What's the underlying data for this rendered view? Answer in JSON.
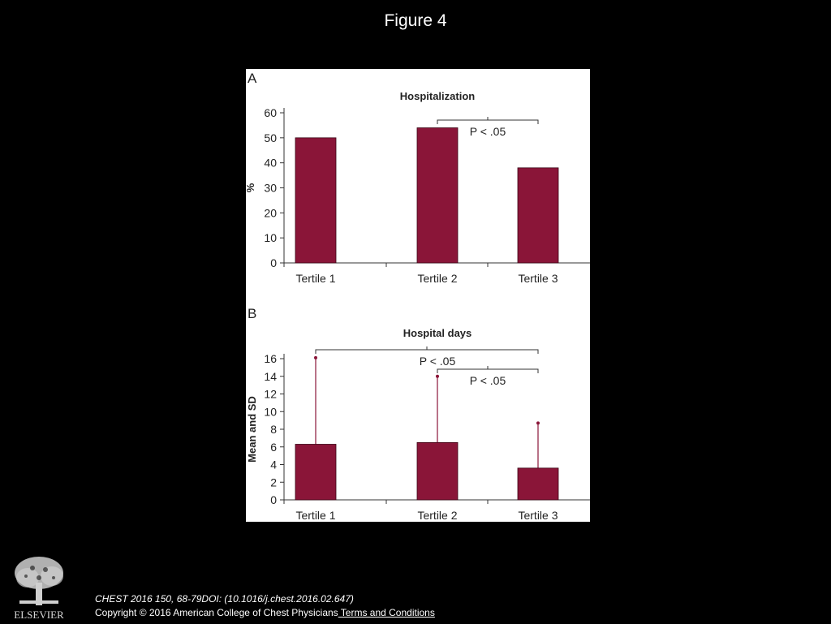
{
  "slide": {
    "title": "Figure 4",
    "citation": "CHEST 2016 150, 68-79DOI: (10.1016/j.chest.2016.02.647)",
    "copyright": "Copyright © 2016 American College of Chest Physicians",
    "terms_link": " Terms and Conditions",
    "publisher": "ELSEVIER"
  },
  "colors": {
    "bar": "#8a1538",
    "background": "#000000",
    "panel": "#ffffff"
  },
  "chart_data": [
    {
      "type": "bar",
      "panel_label": "A",
      "title": "Hospitalization",
      "ylabel": "%",
      "xlabel": "",
      "categories": [
        "Tertile 1",
        "Tertile 2",
        "Tertile 3"
      ],
      "values": [
        50,
        54,
        38
      ],
      "ylim": [
        0,
        60
      ],
      "yticks": [
        0,
        10,
        20,
        30,
        40,
        50,
        60
      ],
      "grid": false,
      "annotations": [
        {
          "text": "P < .05",
          "from": "Tertile 2",
          "to": "Tertile 3"
        }
      ]
    },
    {
      "type": "bar",
      "panel_label": "B",
      "title": "Hospital days",
      "ylabel": "Mean and SD",
      "xlabel": "",
      "categories": [
        "Tertile 1",
        "Tertile 2",
        "Tertile 3"
      ],
      "values": [
        6.3,
        6.5,
        3.6
      ],
      "sd_upper": [
        16.1,
        14.0,
        8.7
      ],
      "ylim": [
        0,
        16
      ],
      "yticks": [
        0,
        2,
        4,
        6,
        8,
        10,
        12,
        14,
        16
      ],
      "grid": false,
      "annotations": [
        {
          "text": "P < .05",
          "from": "Tertile 1",
          "to": "Tertile 3"
        },
        {
          "text": "P < .05",
          "from": "Tertile 2",
          "to": "Tertile 3"
        }
      ]
    }
  ]
}
